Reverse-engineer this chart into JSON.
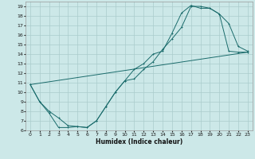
{
  "xlabel": "Humidex (Indice chaleur)",
  "bg_color": "#cce8e8",
  "grid_color": "#aacccc",
  "line_color": "#1a6b6b",
  "xlim": [
    -0.5,
    23.5
  ],
  "ylim": [
    6,
    19.5
  ],
  "xticks": [
    0,
    1,
    2,
    3,
    4,
    5,
    6,
    7,
    8,
    9,
    10,
    11,
    12,
    13,
    14,
    15,
    16,
    17,
    18,
    19,
    20,
    21,
    22,
    23
  ],
  "yticks": [
    6,
    7,
    8,
    9,
    10,
    11,
    12,
    13,
    14,
    15,
    16,
    17,
    18,
    19
  ],
  "line1_x": [
    0,
    1,
    2,
    3,
    4,
    5,
    6,
    7,
    8,
    9,
    10,
    11,
    12,
    13,
    14,
    15,
    16,
    17,
    18,
    19,
    20,
    21,
    22,
    23
  ],
  "line1_y": [
    10.8,
    9.0,
    7.8,
    6.3,
    6.3,
    6.4,
    6.3,
    7.0,
    8.5,
    10.0,
    11.2,
    12.4,
    13.0,
    14.0,
    14.3,
    16.2,
    18.3,
    19.1,
    18.8,
    18.8,
    18.2,
    14.3,
    14.2,
    14.2
  ],
  "line2_x": [
    0,
    1,
    2,
    3,
    4,
    5,
    6,
    7,
    8,
    9,
    10,
    11,
    12,
    13,
    14,
    15,
    16,
    17,
    18,
    19,
    20,
    21,
    22,
    23
  ],
  "line2_y": [
    10.8,
    9.0,
    8.0,
    7.3,
    6.5,
    6.4,
    6.3,
    7.0,
    8.5,
    10.0,
    11.2,
    11.4,
    12.4,
    13.2,
    14.5,
    15.6,
    16.8,
    19.0,
    19.0,
    18.8,
    18.2,
    17.2,
    14.8,
    14.3
  ],
  "line3_x": [
    0,
    23
  ],
  "line3_y": [
    10.8,
    14.2
  ]
}
